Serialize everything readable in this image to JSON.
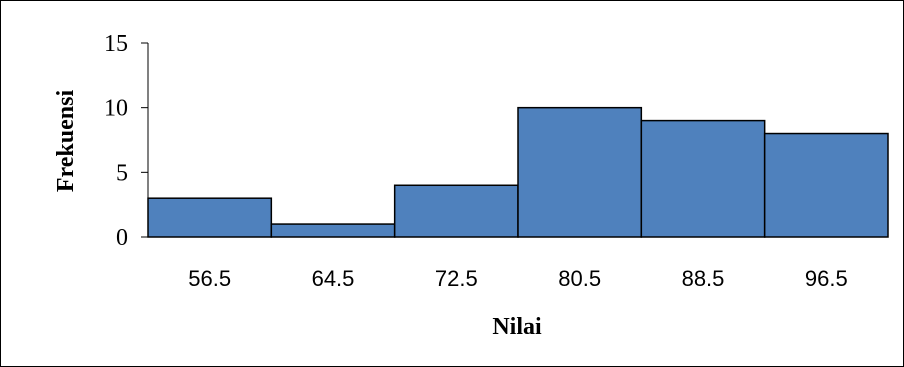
{
  "chart_data": {
    "type": "bar",
    "categories": [
      "56.5",
      "64.5",
      "72.5",
      "80.5",
      "88.5",
      "96.5"
    ],
    "values": [
      3,
      1,
      4,
      10,
      9,
      8
    ],
    "title": "",
    "xlabel": "Nilai",
    "ylabel": "Frekuensi",
    "ylim": [
      0,
      15
    ],
    "yticks": [
      "0",
      "5",
      "10",
      "15"
    ],
    "grid": false,
    "legend": "none",
    "bar_color": "#4F81BD",
    "bar_edge_color": "#000000"
  }
}
